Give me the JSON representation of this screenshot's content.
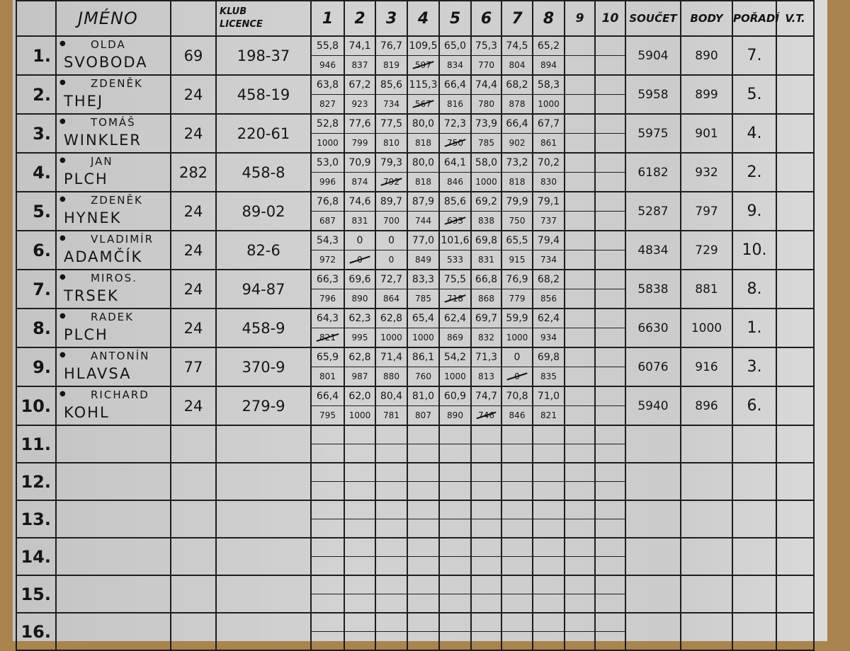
{
  "header": {
    "jmeno": "JMÉNO",
    "klub": "KLUB",
    "licence": "LICENCE",
    "rounds": [
      "1",
      "2",
      "3",
      "4",
      "5",
      "6",
      "7",
      "8",
      "9",
      "10"
    ],
    "soucet": "SOUČET",
    "body": "BODY",
    "poradi": "POŘADÍ",
    "vt": "V.T."
  },
  "rows": [
    {
      "rank": "1.",
      "first": "OLDA",
      "last": "SVOBODA",
      "klub": "69",
      "licence": "198-37",
      "rounds": [
        {
          "v": "55,8",
          "p": "946"
        },
        {
          "v": "74,1",
          "p": "837"
        },
        {
          "v": "76,7",
          "p": "819"
        },
        {
          "v": "109,5",
          "p": "597",
          "struck": true
        },
        {
          "v": "65,0",
          "p": "834"
        },
        {
          "v": "75,3",
          "p": "770"
        },
        {
          "v": "74,5",
          "p": "804"
        },
        {
          "v": "65,2",
          "p": "894"
        }
      ],
      "soucet": "5904",
      "body": "890",
      "poradi": "7."
    },
    {
      "rank": "2.",
      "first": "ZDENĚK",
      "last": "THEJ",
      "klub": "24",
      "licence": "458-19",
      "rounds": [
        {
          "v": "63,8",
          "p": "827"
        },
        {
          "v": "67,2",
          "p": "923"
        },
        {
          "v": "85,6",
          "p": "734"
        },
        {
          "v": "115,3",
          "p": "567",
          "struck": true
        },
        {
          "v": "66,4",
          "p": "816"
        },
        {
          "v": "74,4",
          "p": "780"
        },
        {
          "v": "68,2",
          "p": "878"
        },
        {
          "v": "58,3",
          "p": "1000"
        }
      ],
      "soucet": "5958",
      "body": "899",
      "poradi": "5."
    },
    {
      "rank": "3.",
      "first": "TOMÁŠ",
      "last": "WINKLER",
      "klub": "24",
      "licence": "220-61",
      "rounds": [
        {
          "v": "52,8",
          "p": "1000"
        },
        {
          "v": "77,6",
          "p": "799"
        },
        {
          "v": "77,5",
          "p": "810"
        },
        {
          "v": "80,0",
          "p": "818"
        },
        {
          "v": "72,3",
          "p": "750",
          "struck": true
        },
        {
          "v": "73,9",
          "p": "785"
        },
        {
          "v": "66,4",
          "p": "902"
        },
        {
          "v": "67,7",
          "p": "861"
        }
      ],
      "soucet": "5975",
      "body": "901",
      "poradi": "4."
    },
    {
      "rank": "4.",
      "first": "JAN",
      "last": "PLCH",
      "klub": "282",
      "licence": "458-8",
      "rounds": [
        {
          "v": "53,0",
          "p": "996"
        },
        {
          "v": "70,9",
          "p": "874"
        },
        {
          "v": "79,3",
          "p": "792",
          "struck": true
        },
        {
          "v": "80,0",
          "p": "818"
        },
        {
          "v": "64,1",
          "p": "846"
        },
        {
          "v": "58,0",
          "p": "1000"
        },
        {
          "v": "73,2",
          "p": "818"
        },
        {
          "v": "70,2",
          "p": "830"
        }
      ],
      "soucet": "6182",
      "body": "932",
      "poradi": "2."
    },
    {
      "rank": "5.",
      "first": "ZDENĚK",
      "last": "HYNEK",
      "klub": "24",
      "licence": "89-02",
      "rounds": [
        {
          "v": "76,8",
          "p": "687"
        },
        {
          "v": "74,6",
          "p": "831"
        },
        {
          "v": "89,7",
          "p": "700"
        },
        {
          "v": "87,9",
          "p": "744"
        },
        {
          "v": "85,6",
          "p": "633",
          "struck": true
        },
        {
          "v": "69,2",
          "p": "838"
        },
        {
          "v": "79,9",
          "p": "750"
        },
        {
          "v": "79,1",
          "p": "737"
        }
      ],
      "soucet": "5287",
      "body": "797",
      "poradi": "9."
    },
    {
      "rank": "6.",
      "first": "VLADIMÍR",
      "last": "ADAMČÍK",
      "klub": "24",
      "licence": "82-6",
      "rounds": [
        {
          "v": "54,3",
          "p": "972"
        },
        {
          "v": "0",
          "p": "0",
          "struck": true
        },
        {
          "v": "0",
          "p": "0"
        },
        {
          "v": "77,0",
          "p": "849"
        },
        {
          "v": "101,6",
          "p": "533"
        },
        {
          "v": "69,8",
          "p": "831"
        },
        {
          "v": "65,5",
          "p": "915"
        },
        {
          "v": "79,4",
          "p": "734"
        }
      ],
      "soucet": "4834",
      "body": "729",
      "poradi": "10."
    },
    {
      "rank": "7.",
      "first": "MIROS.",
      "last": "TRSEK",
      "klub": "24",
      "licence": "94-87",
      "rounds": [
        {
          "v": "66,3",
          "p": "796"
        },
        {
          "v": "69,6",
          "p": "890"
        },
        {
          "v": "72,7",
          "p": "864"
        },
        {
          "v": "83,3",
          "p": "785"
        },
        {
          "v": "75,5",
          "p": "718",
          "struck": true
        },
        {
          "v": "66,8",
          "p": "868"
        },
        {
          "v": "76,9",
          "p": "779"
        },
        {
          "v": "68,2",
          "p": "856"
        }
      ],
      "soucet": "5838",
      "body": "881",
      "poradi": "8."
    },
    {
      "rank": "8.",
      "first": "RADEK",
      "last": "PLCH",
      "klub": "24",
      "licence": "458-9",
      "rounds": [
        {
          "v": "64,3",
          "p": "821",
          "struck": true
        },
        {
          "v": "62,3",
          "p": "995"
        },
        {
          "v": "62,8",
          "p": "1000"
        },
        {
          "v": "65,4",
          "p": "1000"
        },
        {
          "v": "62,4",
          "p": "869"
        },
        {
          "v": "69,7",
          "p": "832"
        },
        {
          "v": "59,9",
          "p": "1000"
        },
        {
          "v": "62,4",
          "p": "934"
        }
      ],
      "soucet": "6630",
      "body": "1000",
      "poradi": "1."
    },
    {
      "rank": "9.",
      "first": "ANTONÍN",
      "last": "HLAVSA",
      "klub": "77",
      "licence": "370-9",
      "rounds": [
        {
          "v": "65,9",
          "p": "801"
        },
        {
          "v": "62,8",
          "p": "987"
        },
        {
          "v": "71,4",
          "p": "880"
        },
        {
          "v": "86,1",
          "p": "760"
        },
        {
          "v": "54,2",
          "p": "1000"
        },
        {
          "v": "71,3",
          "p": "813"
        },
        {
          "v": "0",
          "p": "0",
          "struck": true
        },
        {
          "v": "69,8",
          "p": "835"
        }
      ],
      "soucet": "6076",
      "body": "916",
      "poradi": "3."
    },
    {
      "rank": "10.",
      "first": "RICHARD",
      "last": "KOHL",
      "klub": "24",
      "licence": "279-9",
      "rounds": [
        {
          "v": "66,4",
          "p": "795"
        },
        {
          "v": "62,0",
          "p": "1000"
        },
        {
          "v": "80,4",
          "p": "781"
        },
        {
          "v": "81,0",
          "p": "807"
        },
        {
          "v": "60,9",
          "p": "890"
        },
        {
          "v": "74,7",
          "p": "746",
          "struck": true
        },
        {
          "v": "70,8",
          "p": "846"
        },
        {
          "v": "71,0",
          "p": "821"
        }
      ],
      "soucet": "5940",
      "body": "896",
      "poradi": "6."
    }
  ],
  "empty_rows": [
    "11.",
    "12.",
    "13.",
    "14.",
    "15.",
    "16."
  ]
}
